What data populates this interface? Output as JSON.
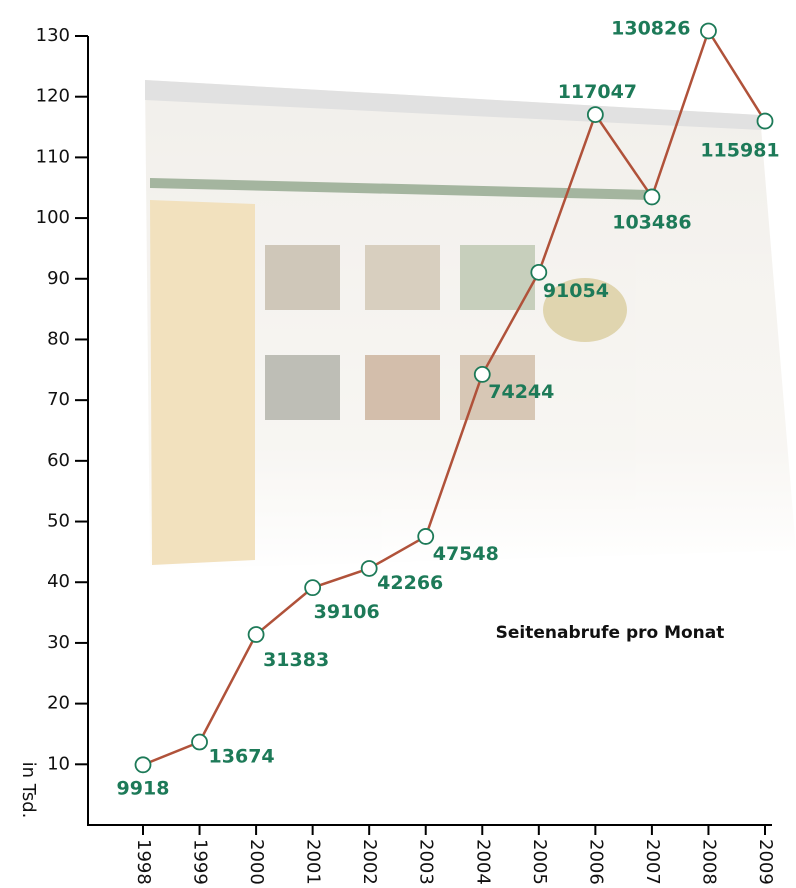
{
  "chart_data": {
    "type": "line",
    "title": "Seitenabrufe pro Monat",
    "y_label": "in Tsd.",
    "categories": [
      "1998",
      "1999",
      "2000",
      "2001",
      "2002",
      "2003",
      "2004",
      "2005",
      "2006",
      "2007",
      "2008",
      "2009"
    ],
    "values": [
      9.918,
      13.674,
      31.383,
      39.106,
      42.266,
      47.548,
      74.244,
      91.054,
      117.047,
      103.486,
      130.826,
      115.981
    ],
    "value_labels": [
      "9918",
      "13674",
      "31383",
      "39106",
      "42266",
      "47548",
      "74244",
      "91054",
      "117047",
      "103486",
      "130826",
      "115981"
    ],
    "color": "#b0523a",
    "marker_color": "#1d7a58",
    "ylim": [
      0,
      130
    ],
    "yticks": [
      10,
      20,
      30,
      40,
      50,
      60,
      70,
      80,
      90,
      100,
      110,
      120,
      130
    ],
    "grid": false
  }
}
